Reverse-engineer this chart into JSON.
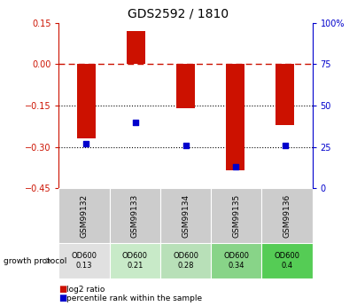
{
  "title": "GDS2592 / 1810",
  "samples": [
    "GSM99132",
    "GSM99133",
    "GSM99134",
    "GSM99135",
    "GSM99136"
  ],
  "log2_ratios": [
    -0.27,
    0.12,
    -0.16,
    -0.385,
    -0.22
  ],
  "percentile_ranks": [
    27,
    40,
    26,
    13,
    26
  ],
  "bar_color": "#cc1100",
  "dot_color": "#0000cc",
  "ylim_left": [
    -0.45,
    0.15
  ],
  "ylim_right": [
    0,
    100
  ],
  "yticks_left": [
    0.15,
    0.0,
    -0.15,
    -0.3,
    -0.45
  ],
  "yticks_right": [
    100,
    75,
    50,
    25,
    0
  ],
  "hline_zero": 0.0,
  "hlines_dotted": [
    -0.15,
    -0.3
  ],
  "growth_protocol_labels": [
    "OD600\n0.13",
    "OD600\n0.21",
    "OD600\n0.28",
    "OD600\n0.34",
    "OD600\n0.4"
  ],
  "growth_protocol_colors": [
    "#e0e0e0",
    "#c8eac8",
    "#b8e0b8",
    "#88d488",
    "#55cc55"
  ],
  "sample_cell_color": "#cccccc",
  "background_color": "#ffffff"
}
